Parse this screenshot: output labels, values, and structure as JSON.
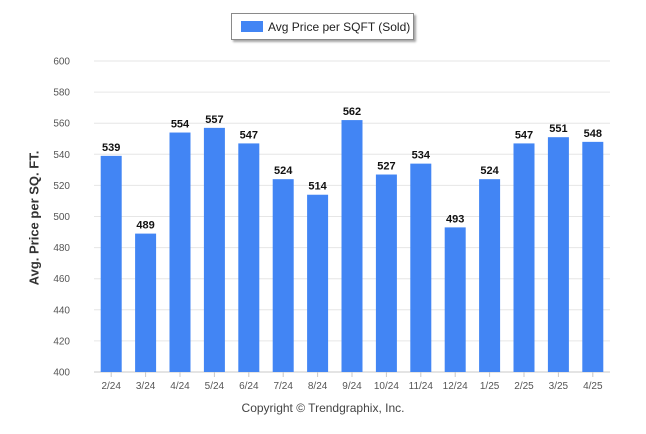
{
  "legend": {
    "label": "Avg Price per SQFT (Sold)"
  },
  "footer": {
    "text": "Copyright © Trendgraphix, Inc."
  },
  "chart_data": {
    "type": "bar",
    "title": "",
    "xlabel": "",
    "ylabel": "Avg. Price per SQ. FT.",
    "ylim": [
      400,
      600
    ],
    "yticks": [
      400,
      420,
      440,
      460,
      480,
      500,
      520,
      540,
      560,
      580,
      600
    ],
    "grid": true,
    "legend_position": "top-center",
    "bar_color": "#4285f4",
    "categories": [
      "2/24",
      "3/24",
      "4/24",
      "5/24",
      "6/24",
      "7/24",
      "8/24",
      "9/24",
      "10/24",
      "11/24",
      "12/24",
      "1/25",
      "2/25",
      "3/25",
      "4/25"
    ],
    "series": [
      {
        "name": "Avg Price per SQFT (Sold)",
        "values": [
          539,
          489,
          554,
          557,
          547,
          524,
          514,
          562,
          527,
          534,
          493,
          524,
          547,
          551,
          548
        ]
      }
    ]
  }
}
